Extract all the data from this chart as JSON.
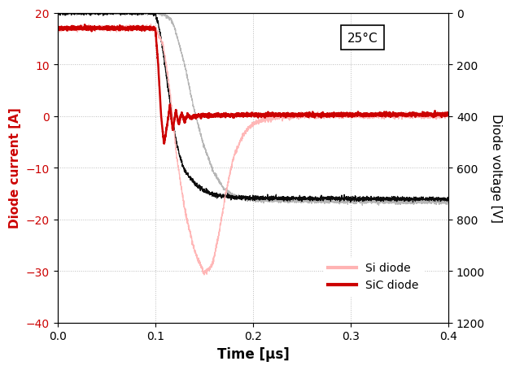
{
  "title_annotation": "25°C",
  "xlabel": "Time [μs]",
  "ylabel_left": "Diode current [A]",
  "ylabel_right": "Diode voltage [V]",
  "xlim": [
    0,
    0.4
  ],
  "ylim_left": [
    -40,
    20
  ],
  "ylim_right": [
    0,
    1200
  ],
  "xticks": [
    0,
    0.1,
    0.2,
    0.3,
    0.4
  ],
  "yticks_left": [
    -40,
    -30,
    -20,
    -10,
    0,
    10,
    20
  ],
  "yticks_right": [
    0,
    200,
    400,
    600,
    800,
    1000,
    1200
  ],
  "legend_labels": [
    "Si diode",
    "SiC diode"
  ],
  "si_color": "#FFB3B3",
  "sic_color": "#CC0000",
  "background_color": "#FFFFFF",
  "grid_color": "#BBBBBB",
  "ylabel_left_color": "#CC0000",
  "ylabel_right_color": "#000000",
  "black_volt_settle_v": 720,
  "gray_volt_settle_v": 730
}
